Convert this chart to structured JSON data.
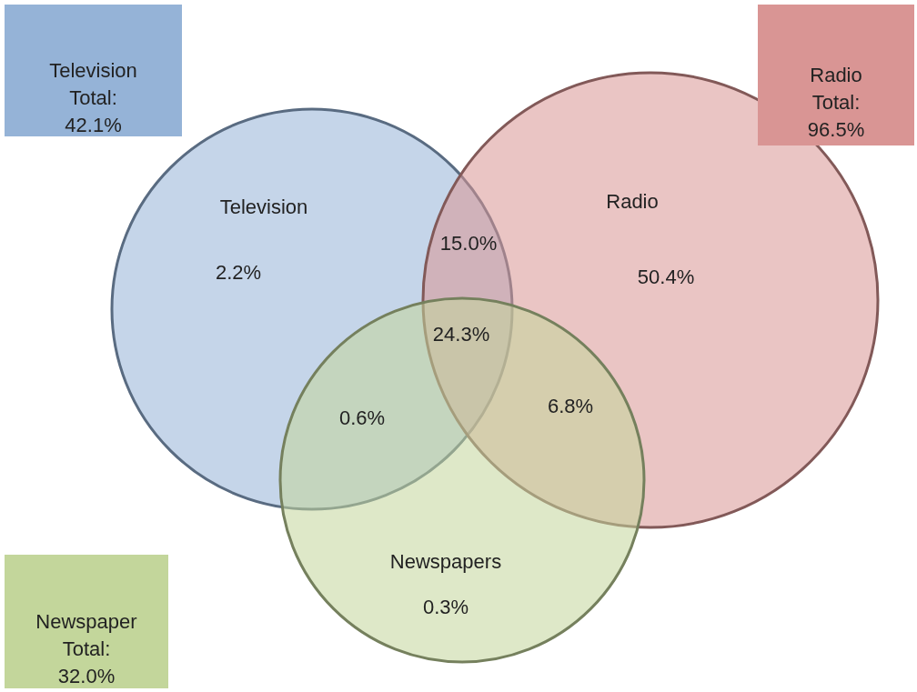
{
  "chart_data": {
    "type": "other",
    "categories": [
      "Television",
      "Radio",
      "Newspapers"
    ],
    "colors": [
      "#95b3d7",
      "#d99594",
      "#c3d69b"
    ],
    "values": [
      42.1,
      96.5,
      32.0
    ],
    "value_labels": [
      "Television Total: 42.1%",
      "Radio Total: 96.5%",
      "Newspaper Total: 32.0%"
    ],
    "annotations": [
      "2.2%",
      "50.4%",
      "0.3%",
      "15.0%",
      "0.6%",
      "6.8%",
      "24.3%"
    ]
  }
}
